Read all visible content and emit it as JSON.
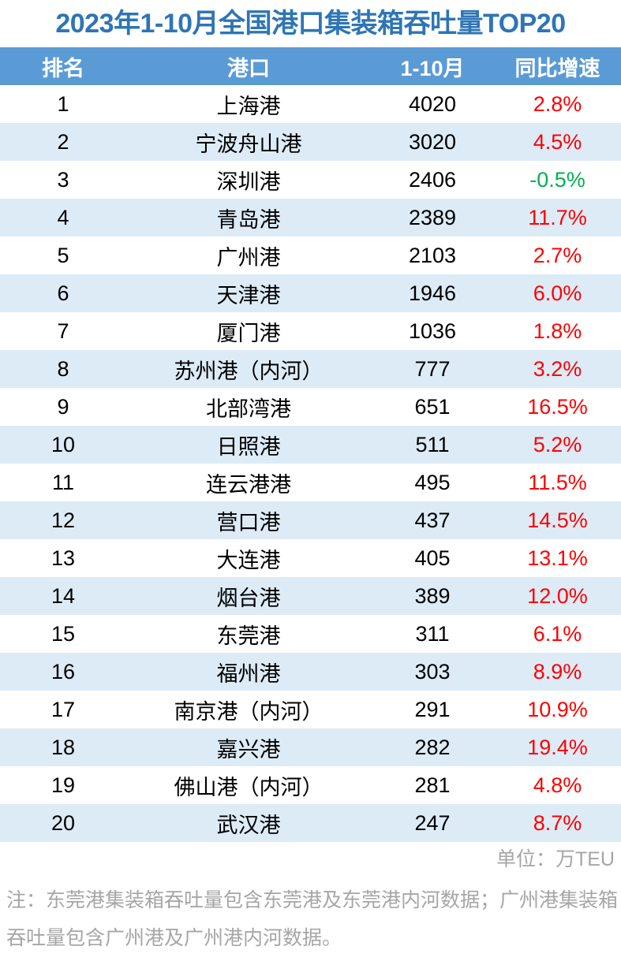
{
  "title": "2023年1-10月全国港口集装箱吞吐量TOP20",
  "headers": [
    "排名",
    "港口",
    "1-10月",
    "同比增速"
  ],
  "colors": {
    "title": "#2e75b6",
    "header_bg": "#5b9bd5",
    "alt_row": "#ddebf7",
    "positive": "#ff0000",
    "negative": "#00b050",
    "note": "#a6a6a6"
  },
  "rows": [
    {
      "rank": "1",
      "port": "上海港",
      "value": "4020",
      "growth": "2.8%"
    },
    {
      "rank": "2",
      "port": "宁波舟山港",
      "value": "3020",
      "growth": "4.5%"
    },
    {
      "rank": "3",
      "port": "深圳港",
      "value": "2406",
      "growth": "-0.5%"
    },
    {
      "rank": "4",
      "port": "青岛港",
      "value": "2389",
      "growth": "11.7%"
    },
    {
      "rank": "5",
      "port": "广州港",
      "value": "2103",
      "growth": "2.7%"
    },
    {
      "rank": "6",
      "port": "天津港",
      "value": "1946",
      "growth": "6.0%"
    },
    {
      "rank": "7",
      "port": "厦门港",
      "value": "1036",
      "growth": "1.8%"
    },
    {
      "rank": "8",
      "port": "苏州港（内河）",
      "value": "777",
      "growth": "3.2%"
    },
    {
      "rank": "9",
      "port": "北部湾港",
      "value": "651",
      "growth": "16.5%"
    },
    {
      "rank": "10",
      "port": "日照港",
      "value": "511",
      "growth": "5.2%"
    },
    {
      "rank": "11",
      "port": "连云港港",
      "value": "495",
      "growth": "11.5%"
    },
    {
      "rank": "12",
      "port": "营口港",
      "value": "437",
      "growth": "14.5%"
    },
    {
      "rank": "13",
      "port": "大连港",
      "value": "405",
      "growth": "13.1%"
    },
    {
      "rank": "14",
      "port": "烟台港",
      "value": "389",
      "growth": "12.0%"
    },
    {
      "rank": "15",
      "port": "东莞港",
      "value": "311",
      "growth": "6.1%"
    },
    {
      "rank": "16",
      "port": "福州港",
      "value": "303",
      "growth": "8.9%"
    },
    {
      "rank": "17",
      "port": "南京港（内河）",
      "value": "291",
      "growth": "10.9%"
    },
    {
      "rank": "18",
      "port": "嘉兴港",
      "value": "282",
      "growth": "19.4%"
    },
    {
      "rank": "19",
      "port": "佛山港（内河）",
      "value": "281",
      "growth": "4.8%"
    },
    {
      "rank": "20",
      "port": "武汉港",
      "value": "247",
      "growth": "8.7%"
    }
  ],
  "unit": "单位：万TEU",
  "note": "注：东莞港集装箱吞吐量包含东莞港及东莞港内河数据；广州港集装箱吞吐量包含广州港及广州港内河数据。"
}
